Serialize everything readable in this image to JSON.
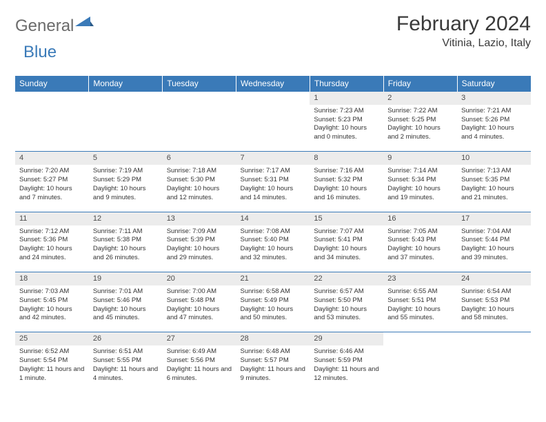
{
  "logo": {
    "general": "General",
    "blue": "Blue"
  },
  "title": "February 2024",
  "location": "Vitinia, Lazio, Italy",
  "colors": {
    "header_bg": "#3a7ab8",
    "header_fg": "#ffffff",
    "daynum_bg": "#ececec",
    "border": "#3a7ab8",
    "text": "#333333"
  },
  "day_headers": [
    "Sunday",
    "Monday",
    "Tuesday",
    "Wednesday",
    "Thursday",
    "Friday",
    "Saturday"
  ],
  "weeks": [
    [
      null,
      null,
      null,
      null,
      {
        "n": "1",
        "sr": "7:23 AM",
        "ss": "5:23 PM",
        "dl": "10 hours and 0 minutes."
      },
      {
        "n": "2",
        "sr": "7:22 AM",
        "ss": "5:25 PM",
        "dl": "10 hours and 2 minutes."
      },
      {
        "n": "3",
        "sr": "7:21 AM",
        "ss": "5:26 PM",
        "dl": "10 hours and 4 minutes."
      }
    ],
    [
      {
        "n": "4",
        "sr": "7:20 AM",
        "ss": "5:27 PM",
        "dl": "10 hours and 7 minutes."
      },
      {
        "n": "5",
        "sr": "7:19 AM",
        "ss": "5:29 PM",
        "dl": "10 hours and 9 minutes."
      },
      {
        "n": "6",
        "sr": "7:18 AM",
        "ss": "5:30 PM",
        "dl": "10 hours and 12 minutes."
      },
      {
        "n": "7",
        "sr": "7:17 AM",
        "ss": "5:31 PM",
        "dl": "10 hours and 14 minutes."
      },
      {
        "n": "8",
        "sr": "7:16 AM",
        "ss": "5:32 PM",
        "dl": "10 hours and 16 minutes."
      },
      {
        "n": "9",
        "sr": "7:14 AM",
        "ss": "5:34 PM",
        "dl": "10 hours and 19 minutes."
      },
      {
        "n": "10",
        "sr": "7:13 AM",
        "ss": "5:35 PM",
        "dl": "10 hours and 21 minutes."
      }
    ],
    [
      {
        "n": "11",
        "sr": "7:12 AM",
        "ss": "5:36 PM",
        "dl": "10 hours and 24 minutes."
      },
      {
        "n": "12",
        "sr": "7:11 AM",
        "ss": "5:38 PM",
        "dl": "10 hours and 26 minutes."
      },
      {
        "n": "13",
        "sr": "7:09 AM",
        "ss": "5:39 PM",
        "dl": "10 hours and 29 minutes."
      },
      {
        "n": "14",
        "sr": "7:08 AM",
        "ss": "5:40 PM",
        "dl": "10 hours and 32 minutes."
      },
      {
        "n": "15",
        "sr": "7:07 AM",
        "ss": "5:41 PM",
        "dl": "10 hours and 34 minutes."
      },
      {
        "n": "16",
        "sr": "7:05 AM",
        "ss": "5:43 PM",
        "dl": "10 hours and 37 minutes."
      },
      {
        "n": "17",
        "sr": "7:04 AM",
        "ss": "5:44 PM",
        "dl": "10 hours and 39 minutes."
      }
    ],
    [
      {
        "n": "18",
        "sr": "7:03 AM",
        "ss": "5:45 PM",
        "dl": "10 hours and 42 minutes."
      },
      {
        "n": "19",
        "sr": "7:01 AM",
        "ss": "5:46 PM",
        "dl": "10 hours and 45 minutes."
      },
      {
        "n": "20",
        "sr": "7:00 AM",
        "ss": "5:48 PM",
        "dl": "10 hours and 47 minutes."
      },
      {
        "n": "21",
        "sr": "6:58 AM",
        "ss": "5:49 PM",
        "dl": "10 hours and 50 minutes."
      },
      {
        "n": "22",
        "sr": "6:57 AM",
        "ss": "5:50 PM",
        "dl": "10 hours and 53 minutes."
      },
      {
        "n": "23",
        "sr": "6:55 AM",
        "ss": "5:51 PM",
        "dl": "10 hours and 55 minutes."
      },
      {
        "n": "24",
        "sr": "6:54 AM",
        "ss": "5:53 PM",
        "dl": "10 hours and 58 minutes."
      }
    ],
    [
      {
        "n": "25",
        "sr": "6:52 AM",
        "ss": "5:54 PM",
        "dl": "11 hours and 1 minute."
      },
      {
        "n": "26",
        "sr": "6:51 AM",
        "ss": "5:55 PM",
        "dl": "11 hours and 4 minutes."
      },
      {
        "n": "27",
        "sr": "6:49 AM",
        "ss": "5:56 PM",
        "dl": "11 hours and 6 minutes."
      },
      {
        "n": "28",
        "sr": "6:48 AM",
        "ss": "5:57 PM",
        "dl": "11 hours and 9 minutes."
      },
      {
        "n": "29",
        "sr": "6:46 AM",
        "ss": "5:59 PM",
        "dl": "11 hours and 12 minutes."
      },
      null,
      null
    ]
  ],
  "labels": {
    "sunrise": "Sunrise: ",
    "sunset": "Sunset: ",
    "daylight": "Daylight: "
  }
}
